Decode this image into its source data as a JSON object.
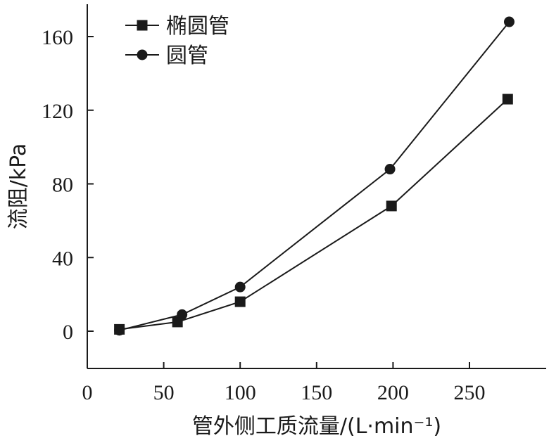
{
  "chart_data": {
    "type": "line",
    "xlabel": "管外侧工质流量/(L·min⁻¹)",
    "ylabel": "流阻/kPa",
    "xlim": [
      0,
      300
    ],
    "ylim": [
      -20,
      180
    ],
    "xticks": [
      0,
      50,
      100,
      150,
      200,
      250
    ],
    "yticks": [
      0,
      40,
      80,
      120,
      160
    ],
    "grid": false,
    "legend_position": "top-left",
    "series": [
      {
        "name": "椭圆管",
        "marker": "square",
        "color": "#1a1a1a",
        "x": [
          21,
          59,
          100,
          199,
          275
        ],
        "y": [
          1,
          5,
          16,
          68,
          126
        ]
      },
      {
        "name": "圆管",
        "marker": "circle",
        "color": "#1a1a1a",
        "x": [
          21,
          62,
          100,
          198,
          276
        ],
        "y": [
          0.5,
          9,
          24,
          88,
          168
        ]
      }
    ]
  }
}
